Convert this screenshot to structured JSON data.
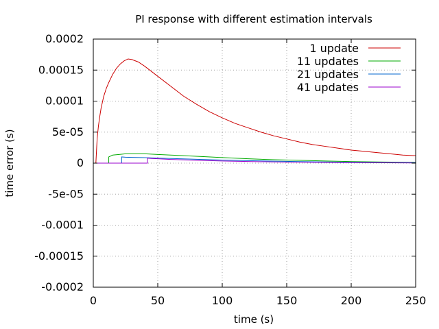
{
  "chart_data": {
    "type": "line",
    "title": "PI response with different estimation intervals",
    "xlabel": "time (s)",
    "ylabel": "time error (s)",
    "xlim": [
      0,
      250
    ],
    "ylim": [
      -0.0002,
      0.0002
    ],
    "grid": true,
    "legend_position": "top-right",
    "x_ticks": [
      {
        "value": 0,
        "label": "0"
      },
      {
        "value": 50,
        "label": "50"
      },
      {
        "value": 100,
        "label": "100"
      },
      {
        "value": 150,
        "label": "150"
      },
      {
        "value": 200,
        "label": "200"
      },
      {
        "value": 250,
        "label": "250"
      }
    ],
    "y_ticks": [
      {
        "value": 0.0002,
        "label": "0.0002"
      },
      {
        "value": 0.00015,
        "label": "0.00015"
      },
      {
        "value": 0.0001,
        "label": "0.0001"
      },
      {
        "value": 5e-05,
        "label": "5e-05"
      },
      {
        "value": 0,
        "label": "0"
      },
      {
        "value": -5e-05,
        "label": "-5e-05"
      },
      {
        "value": -0.0001,
        "label": "-0.0001"
      },
      {
        "value": -0.00015,
        "label": "-0.00015"
      },
      {
        "value": -0.0002,
        "label": "-0.0002"
      }
    ],
    "series": [
      {
        "name": "1 update",
        "color": "#cc0000",
        "x": [
          0,
          2,
          3,
          4,
          5,
          6,
          8,
          10,
          12,
          15,
          18,
          21,
          24,
          27,
          30,
          35,
          40,
          50,
          60,
          70,
          80,
          90,
          100,
          110,
          120,
          130,
          140,
          150,
          160,
          170,
          180,
          190,
          200,
          210,
          220,
          230,
          240,
          250
        ],
        "y": [
          0,
          0,
          4e-05,
          6e-05,
          7.5e-05,
          8.8e-05,
          0.000107,
          0.00012,
          0.00013,
          0.000143,
          0.000153,
          0.00016,
          0.000165,
          0.000168,
          0.000167,
          0.000163,
          0.000156,
          0.00014,
          0.000124,
          0.000108,
          9.5e-05,
          8.3e-05,
          7.3e-05,
          6.4e-05,
          5.7e-05,
          5e-05,
          4.4e-05,
          3.9e-05,
          3.4e-05,
          3e-05,
          2.7e-05,
          2.4e-05,
          2.1e-05,
          1.9e-05,
          1.7e-05,
          1.5e-05,
          1.3e-05,
          1.2e-05
        ]
      },
      {
        "name": "11 updates",
        "color": "#00aa00",
        "x": [
          0,
          12,
          12.01,
          15,
          20,
          25,
          30,
          40,
          50,
          60,
          80,
          100,
          120,
          140,
          160,
          180,
          200,
          225,
          250
        ],
        "y": [
          0,
          0,
          1e-05,
          1.3e-05,
          1.4e-05,
          1.5e-05,
          1.5e-05,
          1.5e-05,
          1.4e-05,
          1.3e-05,
          1.1e-05,
          9e-06,
          7e-06,
          5.5e-06,
          4.5e-06,
          3.5e-06,
          2.5e-06,
          1.8e-06,
          1.2e-06
        ]
      },
      {
        "name": "21 updates",
        "color": "#0066cc",
        "x": [
          0,
          22,
          22.01,
          25,
          30,
          40,
          50,
          60,
          80,
          100,
          120,
          140,
          160,
          180,
          200,
          225,
          250
        ],
        "y": [
          0,
          0,
          1e-05,
          9.5e-06,
          9.2e-06,
          8.8e-06,
          8.2e-06,
          7.5e-06,
          6.2e-06,
          5e-06,
          4e-06,
          3.2e-06,
          2.5e-06,
          2e-06,
          1.5e-06,
          1e-06,
          8e-07
        ]
      },
      {
        "name": "41 updates",
        "color": "#9900cc",
        "x": [
          0,
          42,
          42.01,
          45,
          50,
          60,
          80,
          100,
          120,
          140,
          160,
          180,
          200,
          225,
          250
        ],
        "y": [
          0,
          0,
          8e-06,
          7.5e-06,
          7e-06,
          6e-06,
          4.5e-06,
          3.5e-06,
          2.6e-06,
          2e-06,
          1.5e-06,
          1.1e-06,
          8e-07,
          5e-07,
          3e-07
        ]
      }
    ]
  }
}
